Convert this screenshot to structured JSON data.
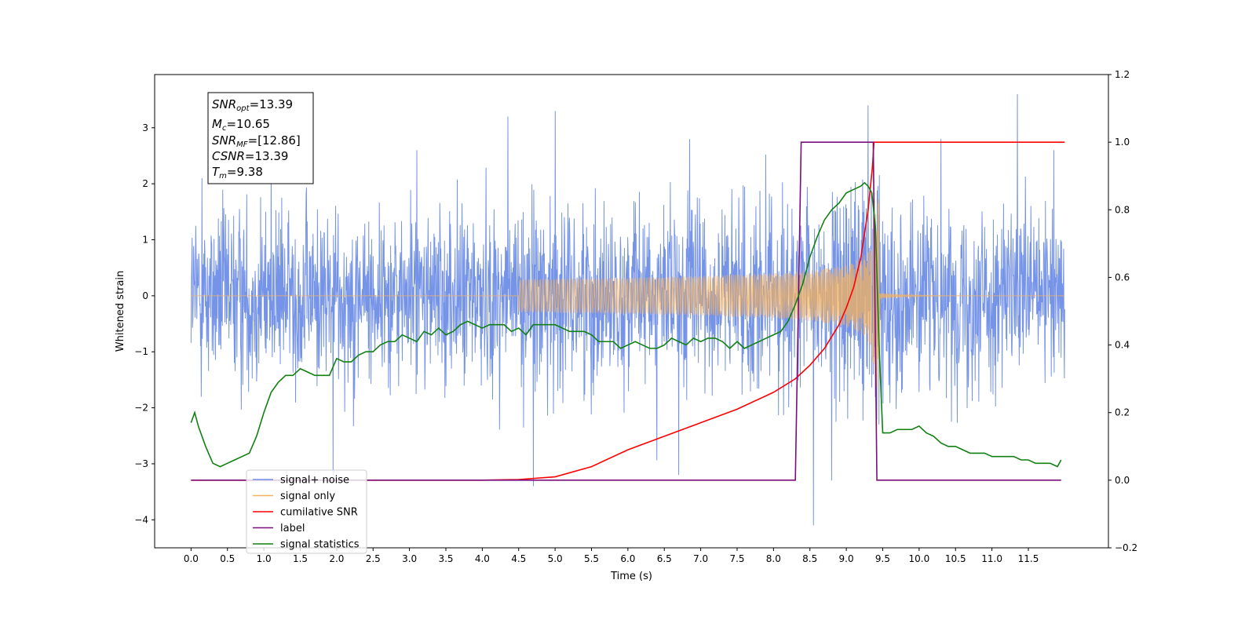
{
  "chart_data": {
    "type": "line",
    "xlabel": "Time (s)",
    "ylabel": "Whitened strain",
    "xlim": [
      -0.5,
      12.6
    ],
    "ylim": [
      -4.5,
      3.95
    ],
    "y2lim": [
      -0.2,
      1.2
    ],
    "xticks": [
      0.0,
      0.5,
      1.0,
      1.5,
      2.0,
      2.5,
      3.0,
      3.5,
      4.0,
      4.5,
      5.0,
      5.5,
      6.0,
      6.5,
      7.0,
      7.5,
      8.0,
      8.5,
      9.0,
      9.5,
      10.0,
      10.5,
      11.0,
      11.5
    ],
    "xtick_labels": [
      "0.0",
      "0.5",
      "1.0",
      "1.5",
      "2.0",
      "2.5",
      "3.0",
      "3.5",
      "4.0",
      "4.5",
      "5.0",
      "5.5",
      "6.0",
      "6.5",
      "7.0",
      "7.5",
      "8.0",
      "8.5",
      "9.0",
      "9.5",
      "10.0",
      "10.5",
      "11.0",
      "11.5"
    ],
    "yticks": [
      -4,
      -3,
      -2,
      -1,
      0,
      1,
      2,
      3
    ],
    "ytick_labels": [
      "−4",
      "−3",
      "−2",
      "−1",
      "0",
      "1",
      "2",
      "3"
    ],
    "y2ticks": [
      -0.2,
      0.0,
      0.2,
      0.4,
      0.6,
      0.8,
      1.0,
      1.2
    ],
    "y2tick_labels": [
      "−0.2",
      "0.0",
      "0.2",
      "0.4",
      "0.6",
      "0.8",
      "1.0",
      "1.2"
    ],
    "grid": false,
    "legend_position": "lower-left",
    "annotation": {
      "lines": [
        {
          "name": "SNR",
          "sub": "opt",
          "value": "=13.39"
        },
        {
          "name": "M",
          "sub": "c",
          "value": "=10.65"
        },
        {
          "name": "SNR",
          "sub": "MF",
          "value": "=[12.86]"
        },
        {
          "name": "CSNR",
          "sub": "",
          "value": "=13.39"
        },
        {
          "name": "T",
          "sub": "m",
          "value": "=9.38"
        }
      ]
    },
    "series": [
      {
        "name": "signal+ noise",
        "axis": "left",
        "color": "#6f8ee6",
        "kind": "noise",
        "x_range": [
          0.0,
          12.0
        ],
        "std": 0.78,
        "samples": 2400,
        "spikes": [
          {
            "x": 0.15,
            "y": 2.1
          },
          {
            "x": 1.1,
            "y": 2.4
          },
          {
            "x": 1.95,
            "y": -3.2
          },
          {
            "x": 4.35,
            "y": 3.2
          },
          {
            "x": 4.7,
            "y": -3.4
          },
          {
            "x": 5.0,
            "y": 3.3
          },
          {
            "x": 6.7,
            "y": -3.2
          },
          {
            "x": 8.55,
            "y": -4.1
          },
          {
            "x": 8.8,
            "y": -3.3
          },
          {
            "x": 9.3,
            "y": 3.4
          },
          {
            "x": 10.3,
            "y": 2.8
          },
          {
            "x": 11.35,
            "y": 3.6
          },
          {
            "x": 11.85,
            "y": 2.6
          },
          {
            "x": 6.85,
            "y": 2.8
          },
          {
            "x": 3.1,
            "y": 2.6
          }
        ],
        "chirp_amp_peak": 1.8,
        "chirp_center": 9.38
      },
      {
        "name": "signal only",
        "axis": "left",
        "color": "#f4b15f",
        "kind": "chirp",
        "x_range": [
          0.0,
          12.0
        ],
        "merger_time": 9.38,
        "amp_peak": 1.75
      },
      {
        "name": "cumilative SNR",
        "axis": "right",
        "color": "#ff0000",
        "x": [
          0.0,
          4.0,
          4.5,
          5.0,
          5.5,
          6.0,
          6.5,
          7.0,
          7.5,
          8.0,
          8.3,
          8.5,
          8.7,
          8.9,
          9.0,
          9.1,
          9.2,
          9.3,
          9.36,
          9.38,
          12.0
        ],
        "values": [
          0.0,
          0.0,
          0.002,
          0.01,
          0.04,
          0.09,
          0.13,
          0.17,
          0.21,
          0.26,
          0.3,
          0.34,
          0.39,
          0.46,
          0.51,
          0.57,
          0.66,
          0.8,
          0.93,
          1.0,
          1.0
        ]
      },
      {
        "name": "label",
        "axis": "right",
        "color": "#7b0e7b",
        "x": [
          0.0,
          8.3,
          8.38,
          9.37,
          9.42,
          11.95
        ],
        "values": [
          0.0,
          0.0,
          1.0,
          1.0,
          0.0,
          0.0
        ]
      },
      {
        "name": "signal statistics",
        "axis": "right",
        "color": "#118011",
        "x": [
          0.0,
          0.05,
          0.1,
          0.2,
          0.3,
          0.4,
          0.5,
          0.6,
          0.7,
          0.8,
          0.9,
          1.0,
          1.1,
          1.2,
          1.3,
          1.4,
          1.5,
          1.6,
          1.7,
          1.8,
          1.9,
          2.0,
          2.1,
          2.2,
          2.3,
          2.4,
          2.5,
          2.6,
          2.7,
          2.8,
          2.9,
          3.0,
          3.1,
          3.2,
          3.3,
          3.4,
          3.5,
          3.6,
          3.7,
          3.8,
          3.9,
          4.0,
          4.1,
          4.2,
          4.3,
          4.4,
          4.5,
          4.6,
          4.7,
          4.8,
          4.9,
          5.0,
          5.1,
          5.2,
          5.3,
          5.4,
          5.5,
          5.6,
          5.7,
          5.8,
          5.9,
          6.0,
          6.1,
          6.2,
          6.3,
          6.4,
          6.5,
          6.6,
          6.7,
          6.8,
          6.9,
          7.0,
          7.1,
          7.2,
          7.3,
          7.4,
          7.5,
          7.6,
          7.7,
          7.8,
          7.9,
          8.0,
          8.1,
          8.2,
          8.3,
          8.4,
          8.5,
          8.6,
          8.7,
          8.8,
          8.9,
          9.0,
          9.1,
          9.2,
          9.25,
          9.3,
          9.35,
          9.4,
          9.45,
          9.5,
          9.6,
          9.7,
          9.8,
          9.9,
          10.0,
          10.1,
          10.2,
          10.3,
          10.4,
          10.5,
          10.6,
          10.7,
          10.8,
          10.9,
          11.0,
          11.1,
          11.2,
          11.3,
          11.4,
          11.5,
          11.6,
          11.7,
          11.8,
          11.9,
          11.95
        ],
        "values": [
          0.17,
          0.2,
          0.16,
          0.1,
          0.05,
          0.04,
          0.05,
          0.06,
          0.07,
          0.08,
          0.13,
          0.2,
          0.26,
          0.29,
          0.31,
          0.31,
          0.33,
          0.32,
          0.31,
          0.31,
          0.31,
          0.36,
          0.35,
          0.35,
          0.37,
          0.38,
          0.38,
          0.4,
          0.41,
          0.41,
          0.43,
          0.42,
          0.41,
          0.44,
          0.43,
          0.45,
          0.43,
          0.44,
          0.46,
          0.47,
          0.46,
          0.45,
          0.46,
          0.46,
          0.46,
          0.44,
          0.45,
          0.43,
          0.46,
          0.46,
          0.46,
          0.46,
          0.45,
          0.44,
          0.44,
          0.44,
          0.43,
          0.41,
          0.41,
          0.41,
          0.39,
          0.4,
          0.41,
          0.4,
          0.39,
          0.39,
          0.4,
          0.42,
          0.41,
          0.4,
          0.42,
          0.41,
          0.42,
          0.42,
          0.41,
          0.39,
          0.41,
          0.39,
          0.4,
          0.41,
          0.42,
          0.43,
          0.44,
          0.47,
          0.52,
          0.58,
          0.66,
          0.72,
          0.77,
          0.8,
          0.82,
          0.85,
          0.86,
          0.87,
          0.88,
          0.87,
          0.85,
          0.75,
          0.4,
          0.14,
          0.14,
          0.15,
          0.15,
          0.15,
          0.16,
          0.14,
          0.13,
          0.11,
          0.1,
          0.1,
          0.09,
          0.08,
          0.08,
          0.08,
          0.07,
          0.07,
          0.07,
          0.07,
          0.06,
          0.06,
          0.05,
          0.05,
          0.05,
          0.04,
          0.06
        ]
      }
    ],
    "legend": {
      "entries": [
        {
          "label": "signal+ noise",
          "color": "#6f8ee6"
        },
        {
          "label": "signal only",
          "color": "#f4b15f"
        },
        {
          "label": "cumilative SNR",
          "color": "#ff0000"
        },
        {
          "label": "label",
          "color": "#7b0e7b"
        },
        {
          "label": "signal statistics",
          "color": "#118011"
        }
      ]
    }
  }
}
